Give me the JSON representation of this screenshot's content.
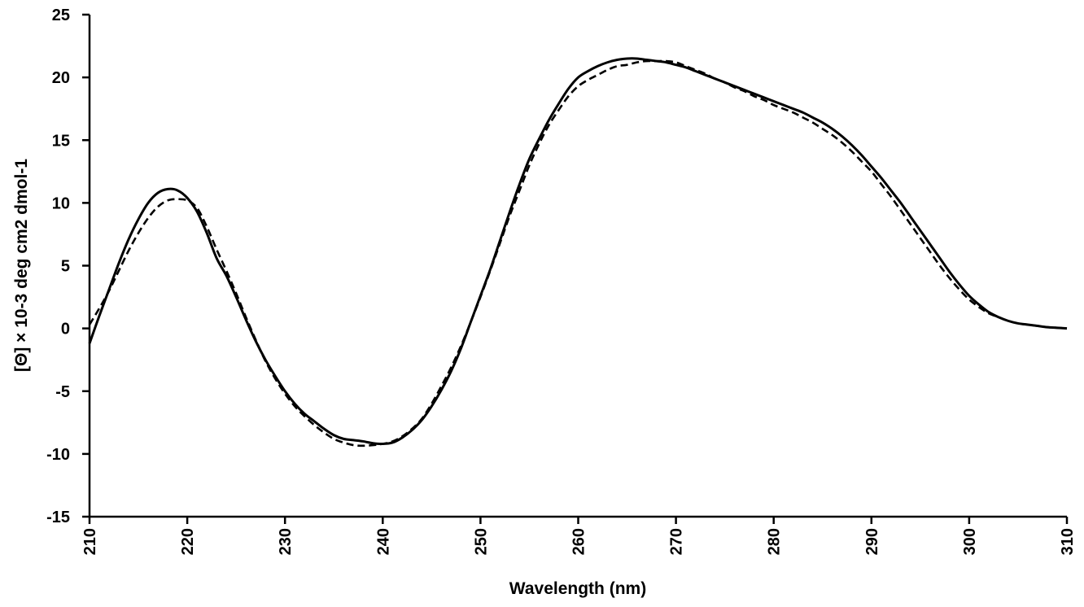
{
  "chart_data": {
    "type": "line",
    "title": "",
    "xlabel": "Wavelength (nm)",
    "ylabel": "[Θ] × 10-3 deg cm2 dmol-1",
    "xlim": [
      210,
      310
    ],
    "ylim": [
      -15,
      25
    ],
    "x_ticks": [
      210,
      220,
      230,
      240,
      250,
      260,
      270,
      280,
      290,
      300,
      310
    ],
    "y_ticks": [
      -15,
      -10,
      -5,
      0,
      5,
      10,
      15,
      20,
      25
    ],
    "grid": false,
    "legend": "none",
    "series": [
      {
        "style": "solid",
        "color": "#000000",
        "x": [
          210,
          211,
          212,
          213,
          214,
          215,
          216,
          217,
          218,
          219,
          220,
          221,
          222,
          223,
          224,
          225,
          226,
          227,
          228,
          229,
          230,
          231,
          232,
          233,
          234,
          235,
          236,
          237,
          238,
          239,
          240,
          241,
          242,
          243,
          244,
          245,
          246,
          247,
          248,
          249,
          250,
          251,
          252,
          253,
          254,
          255,
          256,
          257,
          258,
          259,
          260,
          261,
          262,
          263,
          264,
          265,
          266,
          267,
          268,
          269,
          270,
          271,
          272,
          273,
          274,
          275,
          276,
          277,
          278,
          279,
          280,
          281,
          282,
          283,
          284,
          285,
          286,
          287,
          288,
          289,
          290,
          291,
          292,
          293,
          294,
          295,
          296,
          297,
          298,
          299,
          300,
          301,
          302,
          303,
          304,
          305,
          306,
          307,
          308,
          309,
          310
        ],
        "y": [
          -1.2,
          1.0,
          3.1,
          5.2,
          7.1,
          8.7,
          10.0,
          10.8,
          11.1,
          11.0,
          10.4,
          9.3,
          7.6,
          5.6,
          4.2,
          2.5,
          0.7,
          -1.0,
          -2.5,
          -3.8,
          -5.0,
          -6.0,
          -6.8,
          -7.4,
          -8.0,
          -8.5,
          -8.8,
          -8.9,
          -9.0,
          -9.15,
          -9.2,
          -9.1,
          -8.7,
          -8.1,
          -7.3,
          -6.2,
          -4.9,
          -3.4,
          -1.6,
          0.5,
          2.6,
          4.7,
          7.0,
          9.3,
          11.5,
          13.5,
          15.1,
          16.6,
          17.9,
          19.1,
          20.0,
          20.5,
          20.9,
          21.2,
          21.4,
          21.5,
          21.5,
          21.4,
          21.3,
          21.2,
          21.0,
          20.8,
          20.5,
          20.2,
          19.9,
          19.6,
          19.3,
          19.0,
          18.7,
          18.4,
          18.1,
          17.8,
          17.5,
          17.2,
          16.8,
          16.4,
          15.9,
          15.3,
          14.6,
          13.8,
          12.9,
          12.0,
          11.0,
          10.0,
          8.9,
          7.8,
          6.7,
          5.6,
          4.5,
          3.5,
          2.6,
          1.9,
          1.3,
          0.9,
          0.6,
          0.4,
          0.3,
          0.2,
          0.1,
          0.05,
          0.0
        ]
      },
      {
        "style": "dashed",
        "color": "#000000",
        "x": [
          210,
          211,
          212,
          213,
          214,
          215,
          216,
          217,
          218,
          219,
          220,
          221,
          222,
          223,
          224,
          225,
          226,
          227,
          228,
          229,
          230,
          231,
          232,
          233,
          234,
          235,
          236,
          237,
          238,
          239,
          240,
          241,
          242,
          243,
          244,
          245,
          246,
          247,
          248,
          249,
          250,
          251,
          252,
          253,
          254,
          255,
          256,
          257,
          258,
          259,
          260,
          261,
          262,
          263,
          264,
          265,
          266,
          267,
          268,
          269,
          270,
          271,
          272,
          273,
          274,
          275,
          276,
          277,
          278,
          279,
          280,
          281,
          282,
          283,
          284,
          285,
          286,
          287,
          288,
          289,
          290,
          291,
          292,
          293,
          294,
          295,
          296,
          297,
          298,
          299,
          300,
          301,
          302,
          303,
          304,
          305,
          306,
          307,
          308,
          309,
          310
        ],
        "y": [
          0.3,
          1.6,
          3.0,
          4.6,
          6.2,
          7.6,
          8.8,
          9.7,
          10.2,
          10.3,
          10.2,
          9.6,
          8.1,
          6.3,
          4.6,
          2.8,
          0.9,
          -0.9,
          -2.6,
          -4.0,
          -5.2,
          -6.2,
          -7.0,
          -7.7,
          -8.3,
          -8.8,
          -9.1,
          -9.3,
          -9.35,
          -9.3,
          -9.2,
          -9.0,
          -8.6,
          -8.0,
          -7.2,
          -6.0,
          -4.6,
          -3.1,
          -1.4,
          0.5,
          2.5,
          4.6,
          6.8,
          9.0,
          11.0,
          13.0,
          14.7,
          16.2,
          17.4,
          18.5,
          19.3,
          19.8,
          20.2,
          20.6,
          20.9,
          21.0,
          21.2,
          21.3,
          21.3,
          21.3,
          21.2,
          20.9,
          20.6,
          20.3,
          19.9,
          19.6,
          19.2,
          18.9,
          18.5,
          18.2,
          17.8,
          17.5,
          17.2,
          16.8,
          16.4,
          15.9,
          15.4,
          14.8,
          14.1,
          13.3,
          12.5,
          11.5,
          10.5,
          9.4,
          8.3,
          7.2,
          6.1,
          5.0,
          4.0,
          3.1,
          2.3,
          1.7,
          1.2,
          0.9,
          0.6,
          0.4,
          0.3,
          0.2,
          0.1,
          0.05,
          0.0
        ]
      }
    ]
  }
}
